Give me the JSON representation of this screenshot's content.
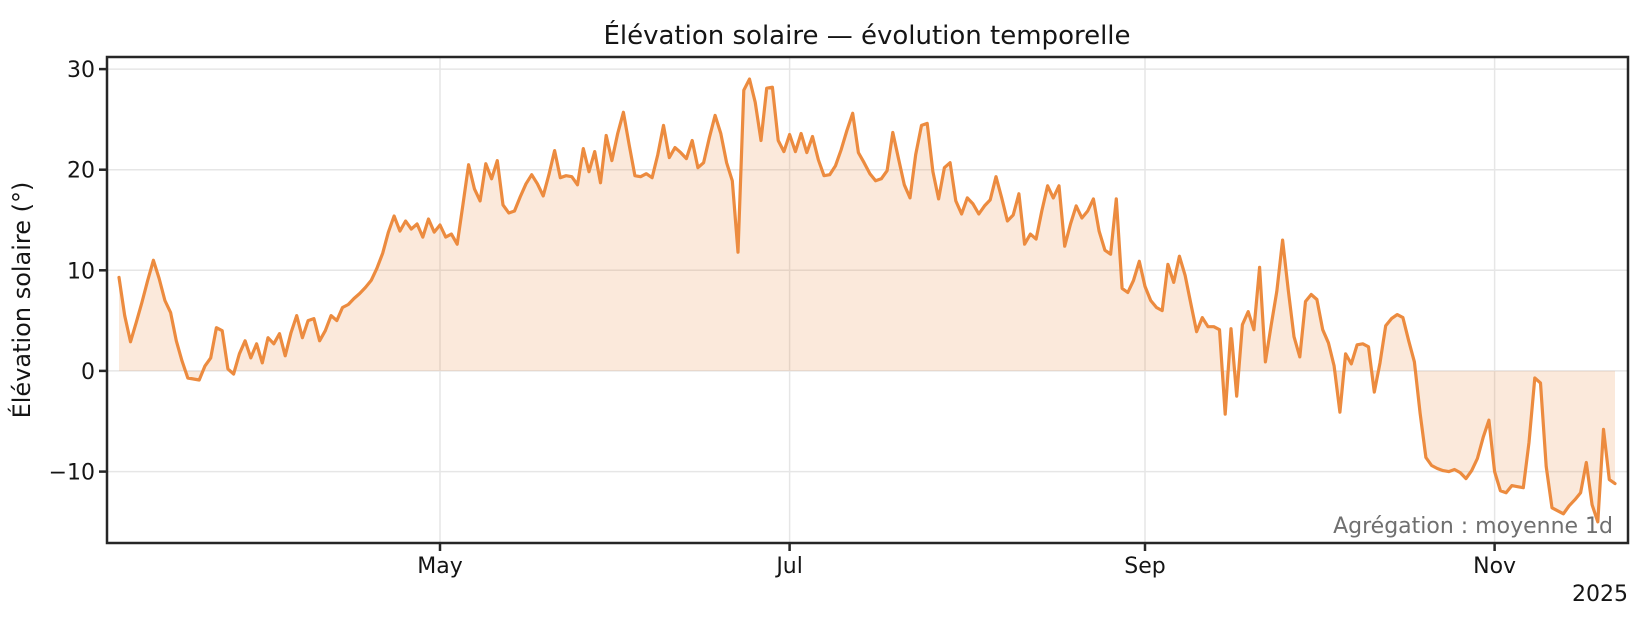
{
  "title": "Élévation solaire — évolution temporelle",
  "annotation": "Agrégation : moyenne 1d",
  "x_axis": {
    "year": "2025",
    "ticks": [
      {
        "label": "May",
        "day": 56
      },
      {
        "label": "Jul",
        "day": 117
      },
      {
        "label": "Sep",
        "day": 179
      },
      {
        "label": "Nov",
        "day": 240
      }
    ]
  },
  "y_axis": {
    "label": "Élévation solaire (°)",
    "ticks": [
      {
        "label": "30",
        "value": 30
      },
      {
        "label": "20",
        "value": 20
      },
      {
        "label": "10",
        "value": 10
      },
      {
        "label": "0",
        "value": 0
      },
      {
        "label": "−10",
        "value": -10
      }
    ]
  },
  "colors": {
    "line": "#ec8b3f",
    "area": "rgba(236,139,63,0.19)",
    "grid": "#e6e6e6",
    "spine": "#262626",
    "text": "#151515",
    "annotation_text": "#6f6f6f",
    "background": "#ffffff"
  },
  "chart_data": {
    "type": "line",
    "title": "Élévation solaire — évolution temporelle",
    "xlabel": "",
    "ylabel": "Élévation solaire (°)",
    "series_name": "Élévation solaire (moyenne 1d)",
    "start_date": "2025-03-06",
    "end_date": "2025-11-22",
    "frequency": "daily",
    "ylim": [
      -17.1,
      31.2
    ],
    "grid": true,
    "fill": "to-zero",
    "x_tick_labels": [
      "May",
      "Jul",
      "Sep",
      "Nov"
    ],
    "values": [
      9.3,
      5.5,
      2.9,
      4.8,
      6.8,
      9.0,
      11.0,
      9.2,
      7.0,
      5.8,
      3.0,
      1.0,
      -0.7,
      -0.8,
      -0.9,
      0.5,
      1.3,
      4.3,
      4.0,
      0.2,
      -0.3,
      1.7,
      3.0,
      1.3,
      2.7,
      0.8,
      3.3,
      2.7,
      3.7,
      1.5,
      3.8,
      5.5,
      3.3,
      5.0,
      5.2,
      3.0,
      4.0,
      5.5,
      5.0,
      6.3,
      6.6,
      7.2,
      7.7,
      8.3,
      9.0,
      10.2,
      11.7,
      13.8,
      15.4,
      13.9,
      14.9,
      14.1,
      14.6,
      13.3,
      15.1,
      13.8,
      14.5,
      13.3,
      13.6,
      12.6,
      16.5,
      20.5,
      18.1,
      16.9,
      20.6,
      19.1,
      20.9,
      16.5,
      15.7,
      15.9,
      17.3,
      18.6,
      19.5,
      18.6,
      17.4,
      19.5,
      21.9,
      19.2,
      19.4,
      19.3,
      18.5,
      22.1,
      19.8,
      21.8,
      18.7,
      23.4,
      20.9,
      23.6,
      25.7,
      22.5,
      19.4,
      19.3,
      19.6,
      19.2,
      21.5,
      24.4,
      21.2,
      22.2,
      21.7,
      21.1,
      22.9,
      20.2,
      20.7,
      23.2,
      25.4,
      23.6,
      20.7,
      18.9,
      11.8,
      27.9,
      29.0,
      26.7,
      22.9,
      28.1,
      28.2,
      22.9,
      21.8,
      23.5,
      21.8,
      23.6,
      21.7,
      23.3,
      21.0,
      19.4,
      19.5,
      20.4,
      22.0,
      23.9,
      25.6,
      21.7,
      20.7,
      19.6,
      18.9,
      19.1,
      19.9,
      23.7,
      21.1,
      18.5,
      17.2,
      21.5,
      24.4,
      24.6,
      19.8,
      17.1,
      20.2,
      20.7,
      16.9,
      15.6,
      17.2,
      16.6,
      15.6,
      16.4,
      17.0,
      19.3,
      17.2,
      14.9,
      15.5,
      17.6,
      12.6,
      13.6,
      13.1,
      15.9,
      18.4,
      17.2,
      18.4,
      12.4,
      14.6,
      16.4,
      15.2,
      15.9,
      17.1,
      13.9,
      12.0,
      11.6,
      17.1,
      8.2,
      7.8,
      9.0,
      10.9,
      8.4,
      7.0,
      6.3,
      6.0,
      10.6,
      8.8,
      11.4,
      9.5,
      6.7,
      3.9,
      5.3,
      4.4,
      4.4,
      4.1,
      -4.3,
      4.2,
      -2.5,
      4.6,
      5.9,
      4.1,
      10.3,
      0.9,
      4.5,
      7.9,
      13.0,
      8.0,
      3.4,
      1.4,
      6.9,
      7.6,
      7.1,
      4.1,
      2.8,
      0.5,
      -4.1,
      1.7,
      0.7,
      2.6,
      2.7,
      2.4,
      -2.1,
      0.8,
      4.5,
      5.2,
      5.6,
      5.3,
      3.0,
      0.9,
      -4.2,
      -8.6,
      -9.4,
      -9.7,
      -9.9,
      -10.0,
      -9.8,
      -10.1,
      -10.7,
      -9.9,
      -8.7,
      -6.6,
      -4.9,
      -10.0,
      -11.9,
      -12.1,
      -11.4,
      -11.5,
      -11.6,
      -7.1,
      -0.7,
      -1.2,
      -9.5,
      -13.6,
      -13.9,
      -14.2,
      -13.4,
      -12.8,
      -12.1,
      -9.1,
      -13.3,
      -15.0,
      -5.8,
      -10.8,
      -11.2
    ]
  }
}
